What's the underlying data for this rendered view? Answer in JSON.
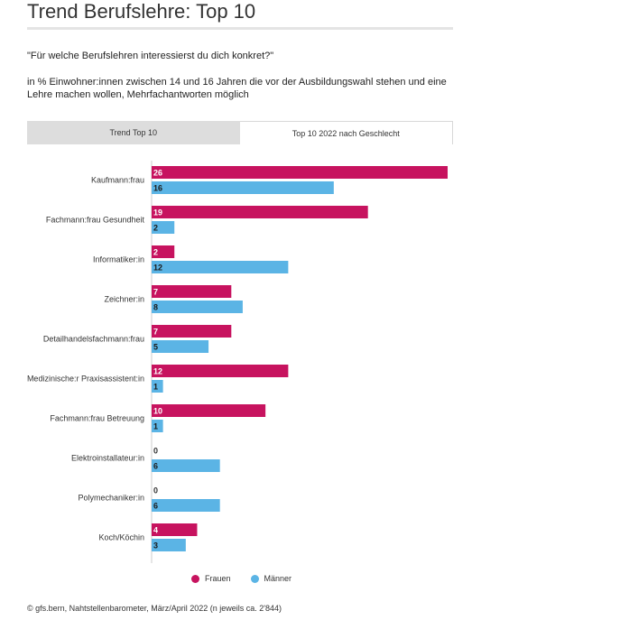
{
  "page": {
    "title": "Trend Berufslehre: Top 10",
    "question": "\"Für welche Berufslehren interessierst du dich konkret?\"",
    "subtitle": "in % Einwohner:innen zwischen 14 und 16 Jahren die vor der Ausbildungswahl stehen und eine Lehre machen wollen, Mehrfachantworten möglich",
    "tabs": [
      {
        "label": "Trend Top 10",
        "active": false
      },
      {
        "label": "Top 10 2022 nach Geschlecht",
        "active": true
      }
    ],
    "source": "© gfs.bern, Nahtstellenbarometer, März/April 2022 (n jeweils ca. 2'844)"
  },
  "chart_data": {
    "type": "bar",
    "orientation": "horizontal",
    "categories": [
      "Kaufmann:frau",
      "Fachmann:frau Gesundheit",
      "Informatiker:in",
      "Zeichner:in",
      "Detailhandelsfachmann:frau",
      "Medizinische:r Praxisassistent:in",
      "Fachmann:frau Betreuung",
      "Elektroinstallateur:in",
      "Polymechaniker:in",
      "Koch/Köchin"
    ],
    "series": [
      {
        "name": "Frauen",
        "color": "#c7135f",
        "values": [
          26,
          19,
          2,
          7,
          7,
          12,
          10,
          0,
          0,
          4
        ]
      },
      {
        "name": "Männer",
        "color": "#5bb4e5",
        "values": [
          16,
          2,
          12,
          8,
          5,
          1,
          1,
          6,
          6,
          3
        ]
      }
    ],
    "xlim": [
      0,
      26
    ],
    "grid": false,
    "legend": "bottom"
  }
}
